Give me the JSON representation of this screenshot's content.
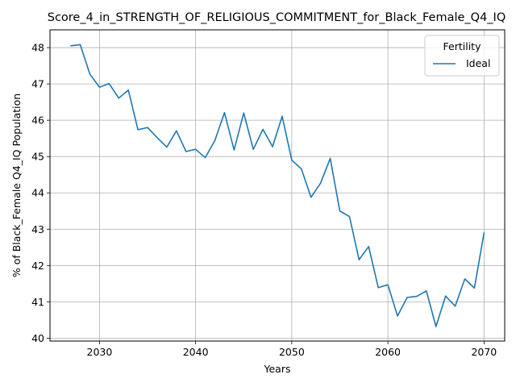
{
  "chart_data": {
    "type": "line",
    "title": "Score_4_in_STRENGTH_OF_RELIGIOUS_COMMITMENT_for_Black_Female_Q4_IQ",
    "xlabel": "Years",
    "ylabel": "% of Black_Female Q4_IQ Population",
    "xlim": [
      2024.85,
      2072.15
    ],
    "ylim": [
      39.92,
      48.49
    ],
    "xticks": [
      2030,
      2040,
      2050,
      2060,
      2070
    ],
    "yticks": [
      40,
      41,
      42,
      43,
      44,
      45,
      46,
      47,
      48
    ],
    "grid": true,
    "legend": {
      "title": "Fertility",
      "position": "top-right"
    },
    "colors": {
      "series": "#1f77b4",
      "grid": "#b0b0b0"
    },
    "x": [
      2027,
      2028,
      2029,
      2030,
      2031,
      2032,
      2033,
      2034,
      2035,
      2036,
      2037,
      2038,
      2039,
      2040,
      2041,
      2042,
      2043,
      2044,
      2045,
      2046,
      2047,
      2048,
      2049,
      2050,
      2051,
      2052,
      2053,
      2054,
      2055,
      2056,
      2057,
      2058,
      2059,
      2060,
      2061,
      2062,
      2063,
      2064,
      2065,
      2066,
      2067,
      2068,
      2069,
      2070
    ],
    "series": [
      {
        "name": "Ideal",
        "values": [
          48.05,
          48.08,
          47.27,
          46.91,
          47.01,
          46.61,
          46.83,
          45.74,
          45.8,
          45.52,
          45.26,
          45.71,
          45.14,
          45.2,
          44.97,
          45.44,
          46.21,
          45.18,
          46.2,
          45.2,
          45.75,
          45.27,
          46.11,
          44.9,
          44.66,
          43.88,
          44.27,
          44.95,
          43.5,
          43.35,
          42.16,
          42.52,
          41.39,
          41.47,
          40.61,
          41.12,
          41.15,
          41.3,
          40.32,
          41.16,
          40.88,
          41.63,
          41.38,
          42.9
        ]
      }
    ]
  }
}
